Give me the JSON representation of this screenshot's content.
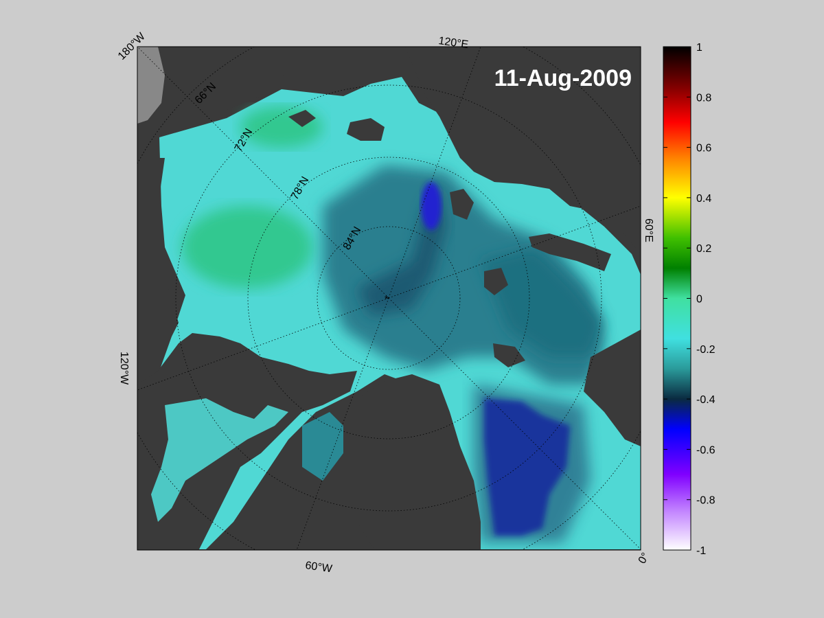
{
  "date_label": "11-Aug-2009",
  "longitude_labels": {
    "top_left": "180°W",
    "top": "120°E",
    "right": "60°E",
    "bottom_right": "0°",
    "bottom": "60°W",
    "left": "120°W"
  },
  "latitude_labels": [
    "66°N",
    "72°N",
    "78°N",
    "84°N"
  ],
  "colorbar": {
    "ticks": [
      "1",
      "0.8",
      "0.6",
      "0.4",
      "0.2",
      "0",
      "-0.2",
      "-0.4",
      "-0.6",
      "-0.8",
      "-1"
    ],
    "range": [
      -1,
      1
    ],
    "colors_top_to_bottom": [
      "#000000",
      "#800000",
      "#ff0000",
      "#ff8000",
      "#ffff00",
      "#40c000",
      "#008000",
      "#40e0a0",
      "#40e0e0",
      "#2a9a9a",
      "#0a2a40",
      "#0000ff",
      "#8000ff",
      "#c080ff",
      "#ffffff"
    ]
  },
  "colors": {
    "land": "#3a3a3a",
    "background": "#cccccc",
    "ocean_low_anomaly": "#1010e0",
    "ocean_mid_anomaly": "#1f6f80",
    "ocean_high_anomaly": "#50e0d0"
  }
}
